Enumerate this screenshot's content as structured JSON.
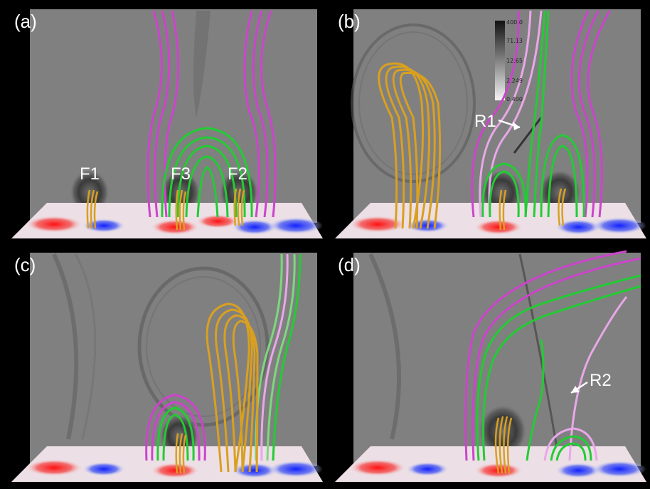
{
  "panels": [
    {
      "label": "(a)",
      "footpoints": [
        "F1",
        "F3",
        "F2"
      ]
    },
    {
      "label": "(b)",
      "annotation": "R1",
      "colorbar": {
        "ticks": [
          "400.0",
          "71.13",
          "12.65",
          "2.249",
          "0.400"
        ]
      }
    },
    {
      "label": "(c)"
    },
    {
      "label": "(d)",
      "annotation": "R2"
    }
  ],
  "colors": {
    "background": "#808080",
    "magenta_lines": "#cc44cc",
    "pink_lines": "#e8a8e8",
    "green_lines": "#22cc33",
    "flux_rope": "#d9a020",
    "positive_polarity": "#ee2222",
    "negative_polarity": "#2233ee"
  }
}
